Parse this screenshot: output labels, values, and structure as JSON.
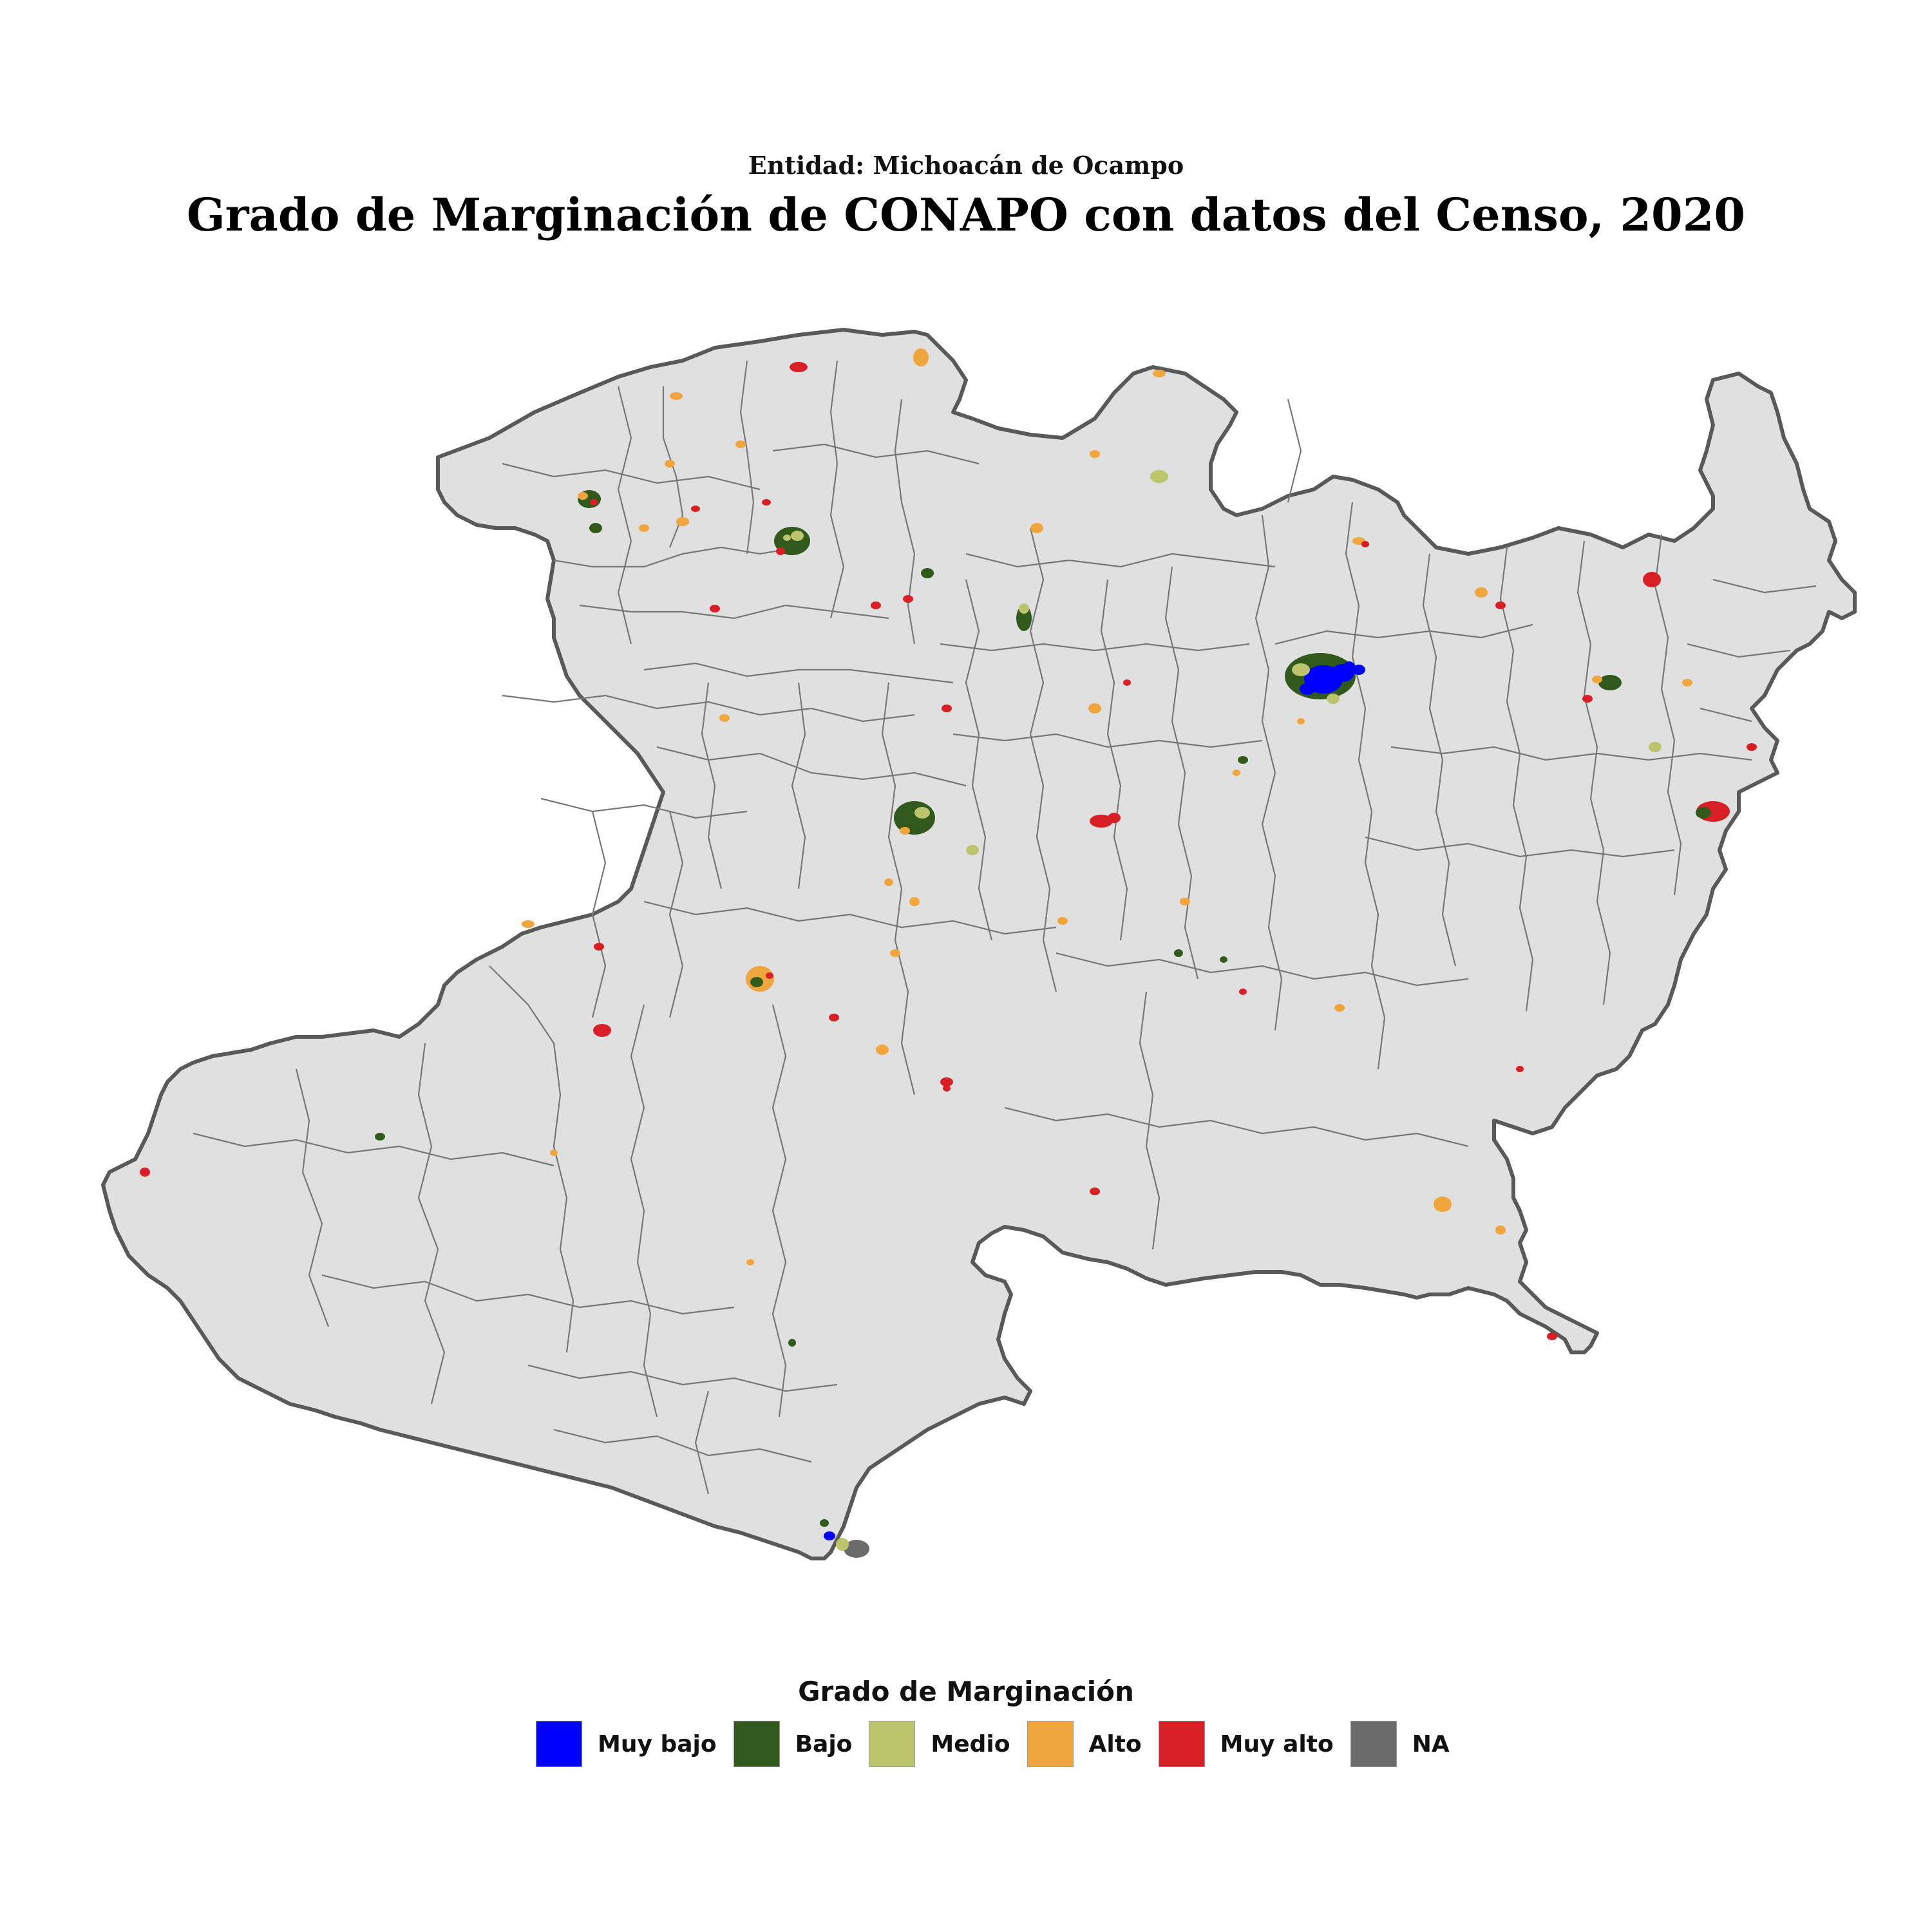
{
  "header": {
    "subtitle": "Entidad: Michoacán de Ocampo",
    "title": "Grado de Marginación de CONAPO con datos del Censo, 2020"
  },
  "map": {
    "region_fill": "#e0e0e0",
    "border_color": "#595959",
    "municipal_border_color": "#777777"
  },
  "legend": {
    "title": "Grado de Marginación",
    "items": [
      {
        "label": "Muy bajo",
        "color": "#0000ff"
      },
      {
        "label": "Bajo",
        "color": "#31591c"
      },
      {
        "label": "Medio",
        "color": "#bcc46d"
      },
      {
        "label": "Alto",
        "color": "#f0a63d"
      },
      {
        "label": "Muy alto",
        "color": "#d91f26"
      },
      {
        "label": "NA",
        "color": "#6b6b6b"
      }
    ]
  }
}
